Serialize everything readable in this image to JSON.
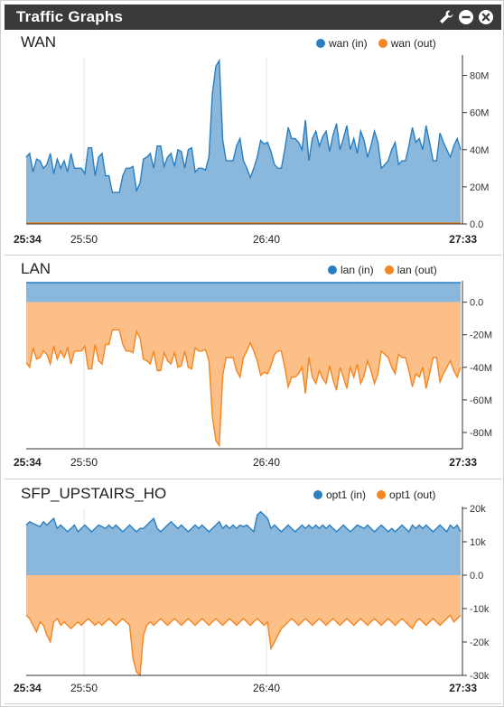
{
  "widget": {
    "title": "Traffic Graphs",
    "icons": [
      "wrench-icon",
      "minimize-icon",
      "close-icon"
    ]
  },
  "colors": {
    "in": "#2a7fc1",
    "in_fill": "#8ab7dc",
    "out": "#f5851f",
    "out_fill": "#fbbf87"
  },
  "graphs": [
    {
      "id": "wan",
      "title": "WAN",
      "legend": [
        "wan (in)",
        "wan (out)"
      ],
      "x_labels": [
        "25:34",
        "25:50",
        "26:40",
        "27:33"
      ],
      "chart_data": {
        "type": "area",
        "y_ticks": [
          "80M",
          "60M",
          "40M",
          "20M",
          "0.0"
        ],
        "ylim": [
          0,
          90
        ],
        "series": [
          {
            "name": "wan (in)",
            "values": [
              36,
              38,
              28,
              35,
              34,
              30,
              32,
              38,
              27,
              35,
              30,
              34,
              28,
              38,
              30,
              30,
              30,
              27,
              41,
              41,
              26,
              36,
              38,
              26,
              26,
              17,
              17,
              17,
              26,
              30,
              30,
              31,
              18,
              22,
              35,
              36,
              38,
              30,
              42,
              42,
              31,
              36,
              38,
              31,
              40,
              39,
              30,
              40,
              41,
              28,
              30,
              30,
              29,
              36,
              70,
              85,
              88,
              45,
              34,
              34,
              34,
              42,
              46,
              34,
              30,
              25,
              30,
              36,
              45,
              43,
              44,
              39,
              32,
              30,
              30,
              40,
              52,
              46,
              46,
              44,
              40,
              56,
              34,
              46,
              50,
              42,
              47,
              50,
              39,
              48,
              54,
              40,
              46,
              53,
              40,
              46,
              38,
              50,
              45,
              36,
              42,
              50,
              44,
              30,
              32,
              34,
              40,
              44,
              32,
              34,
              34,
              42,
              52,
              44,
              46,
              40,
              53,
              44,
              34,
              34,
              49,
              44,
              40,
              36,
              42,
              46,
              40
            ]
          },
          {
            "name": "wan (out)",
            "values": [
              0.5,
              0.5,
              0.5,
              0.5,
              0.5,
              0.5,
              0.5,
              0.5,
              0.5,
              0.5,
              0.5,
              0.5,
              0.5,
              0.5,
              0.5,
              0.5,
              0.5,
              0.5,
              0.5,
              0.5,
              0.5,
              0.5,
              0.5,
              0.5,
              0.5,
              0.5,
              0.5,
              0.5,
              0.5,
              0.5,
              0.5,
              0.5,
              0.5,
              0.5,
              0.5,
              0.5,
              0.5,
              0.5,
              0.5,
              0.5,
              0.5,
              0.5,
              0.5,
              0.5,
              0.5,
              0.5,
              0.5,
              0.5,
              0.5,
              0.5,
              0.5,
              0.5,
              0.5,
              0.5,
              0.5,
              0.5,
              0.5,
              0.5,
              0.5,
              0.5,
              0.5,
              0.5,
              0.5,
              0.5,
              0.5,
              0.5,
              0.5,
              0.5,
              0.5,
              0.5,
              0.5,
              0.5,
              0.5,
              0.5,
              0.5,
              0.5,
              0.5,
              0.5,
              0.5,
              0.5,
              0.5,
              0.5,
              0.5,
              0.5,
              0.5,
              0.5,
              0.5,
              0.5,
              0.5,
              0.5,
              0.5,
              0.5,
              0.5,
              0.5,
              0.5,
              0.5,
              0.5,
              0.5,
              0.5,
              0.5,
              0.5,
              0.5,
              0.5,
              0.5,
              0.5,
              0.5,
              0.5,
              0.5,
              0.5,
              0.5,
              0.5,
              0.5,
              0.5,
              0.5,
              0.5,
              0.5,
              0.5,
              0.5,
              0.5,
              0.5,
              0.5,
              0.5,
              0.5,
              0.5,
              0.5,
              0.5,
              0.5
            ]
          }
        ]
      }
    },
    {
      "id": "lan",
      "title": "LAN",
      "legend": [
        "lan (in)",
        "lan (out)"
      ],
      "x_labels": [
        "25:34",
        "25:50",
        "26:40",
        "27:33"
      ],
      "chart_data": {
        "type": "area",
        "y_ticks": [
          "0.0",
          "-20M",
          "-40M",
          "-60M",
          "-80M"
        ],
        "ylim": [
          -90,
          12
        ],
        "series": [
          {
            "name": "lan (in)",
            "values": [
              12,
              12,
              12,
              12,
              12,
              12,
              12,
              12,
              12,
              12,
              12,
              12,
              12,
              12,
              12,
              12,
              12,
              12,
              12,
              12,
              12,
              12,
              12,
              12,
              12,
              12,
              12,
              12,
              12,
              12,
              12,
              12,
              12,
              12,
              12,
              12,
              12,
              12,
              12,
              12,
              12,
              12,
              12,
              12,
              12,
              12,
              12,
              12,
              12,
              12,
              12,
              12,
              12,
              12,
              12,
              12,
              12,
              12,
              12,
              12,
              12,
              12,
              12,
              12,
              12,
              12,
              12,
              12,
              12,
              12,
              12,
              12,
              12,
              12,
              12,
              12,
              12,
              12,
              12,
              12,
              12,
              12,
              12,
              12,
              12,
              12,
              12,
              12,
              12,
              12,
              12,
              12,
              12,
              12,
              12,
              12,
              12,
              12,
              12,
              12,
              12,
              12,
              12,
              12,
              12,
              12,
              12,
              12,
              12,
              12,
              12,
              12,
              12,
              12,
              12,
              12,
              12,
              12,
              12,
              12,
              12,
              12,
              12,
              12,
              12,
              12,
              12
            ]
          },
          {
            "name": "lan (out)",
            "values": [
              -37,
              -40,
              -28,
              -35,
              -34,
              -30,
              -32,
              -38,
              -27,
              -35,
              -30,
              -34,
              -28,
              -38,
              -30,
              -30,
              -30,
              -27,
              -41,
              -41,
              -26,
              -36,
              -38,
              -26,
              -26,
              -17,
              -17,
              -17,
              -26,
              -30,
              -30,
              -31,
              -18,
              -22,
              -35,
              -36,
              -38,
              -30,
              -42,
              -42,
              -31,
              -36,
              -38,
              -31,
              -40,
              -39,
              -30,
              -40,
              -41,
              -28,
              -30,
              -30,
              -29,
              -36,
              -70,
              -85,
              -88,
              -45,
              -34,
              -34,
              -34,
              -42,
              -46,
              -34,
              -30,
              -25,
              -30,
              -36,
              -45,
              -43,
              -44,
              -39,
              -32,
              -30,
              -30,
              -40,
              -52,
              -46,
              -46,
              -44,
              -40,
              -56,
              -34,
              -46,
              -50,
              -42,
              -47,
              -50,
              -39,
              -48,
              -54,
              -40,
              -46,
              -53,
              -40,
              -46,
              -38,
              -50,
              -45,
              -36,
              -42,
              -50,
              -44,
              -30,
              -32,
              -34,
              -40,
              -44,
              -32,
              -34,
              -34,
              -42,
              -52,
              -44,
              -46,
              -40,
              -53,
              -44,
              -34,
              -34,
              -49,
              -44,
              -40,
              -36,
              -42,
              -46,
              -40
            ]
          }
        ]
      }
    },
    {
      "id": "opt1",
      "title": "SFP_UPSTAIRS_HO",
      "legend": [
        "opt1 (in)",
        "opt1 (out)"
      ],
      "x_labels": [
        "25:34",
        "25:50",
        "26:40",
        "27:33"
      ],
      "chart_data": {
        "type": "area",
        "y_ticks": [
          "20k",
          "10k",
          "0.0",
          "-10k",
          "-20k",
          "-30k"
        ],
        "ylim": [
          -30,
          20
        ],
        "series": [
          {
            "name": "opt1 (in)",
            "values": [
              15,
              16,
              15.5,
              15,
              14.5,
              16,
              15,
              16,
              17,
              14,
              15,
              14,
              13,
              14,
              15,
              13,
              14,
              15,
              14,
              13,
              14,
              15,
              14.5,
              14,
              15,
              14,
              15,
              14,
              13,
              14,
              15,
              14,
              13,
              14,
              14,
              15,
              16,
              17,
              14,
              13,
              14,
              15,
              16,
              15,
              14,
              15,
              14,
              13,
              14,
              15,
              14,
              15,
              14,
              13,
              14,
              15,
              16,
              14,
              15,
              14,
              15,
              14,
              15,
              14.5,
              15,
              14,
              13,
              18,
              19,
              18,
              17,
              14,
              15,
              14,
              13,
              14,
              15,
              14,
              13,
              14,
              15,
              14,
              15,
              14,
              15,
              14,
              15,
              14,
              15,
              14,
              13,
              14,
              15,
              14,
              13,
              14,
              15,
              14.5,
              14,
              15,
              14,
              13,
              14,
              15,
              14,
              13,
              14,
              13,
              14,
              15,
              14,
              13,
              15,
              14,
              15,
              14,
              15,
              14,
              13,
              14,
              15,
              14,
              13,
              15,
              14,
              15,
              13
            ]
          },
          {
            "name": "opt1 (out)",
            "values": [
              -12,
              -13,
              -15,
              -17,
              -14,
              -15,
              -18,
              -20,
              -14,
              -13,
              -15,
              -14,
              -15,
              -16,
              -15,
              -14,
              -15,
              -14,
              -13,
              -14,
              -15,
              -14,
              -15,
              -14,
              -13,
              -14,
              -15,
              -14,
              -13,
              -14,
              -15,
              -25,
              -29,
              -30,
              -18,
              -15,
              -14,
              -15,
              -14,
              -13,
              -14,
              -15,
              -14,
              -13,
              -14,
              -15,
              -14,
              -13,
              -14,
              -15,
              -14,
              -13,
              -14,
              -15,
              -14,
              -13,
              -14,
              -15,
              -14,
              -13,
              -14,
              -15,
              -14,
              -13,
              -14,
              -15,
              -14,
              -13,
              -14,
              -15,
              -14,
              -22,
              -20,
              -18,
              -16,
              -15,
              -14,
              -13,
              -14,
              -15,
              -14,
              -13,
              -14,
              -15,
              -14,
              -13,
              -14,
              -15,
              -14,
              -13,
              -14,
              -15,
              -14,
              -13,
              -14,
              -15,
              -14,
              -13,
              -14,
              -15,
              -14,
              -13,
              -14,
              -15,
              -14,
              -13,
              -14,
              -15,
              -14,
              -13,
              -14,
              -15,
              -16,
              -14,
              -13,
              -14,
              -15,
              -14,
              -13,
              -14,
              -15,
              -14,
              -13,
              -12,
              -14,
              -13,
              -12
            ]
          }
        ]
      }
    }
  ]
}
